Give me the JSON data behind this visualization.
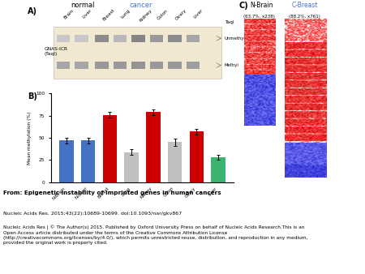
{
  "title": "From: Epigenetic instability of imprinted genes in human cancers",
  "citation1": "Nucleic Acids Res. 2015;43(22):10689-10699. doi:10.1093/nar/gkv867",
  "citation2": "Nucleic Acids Res | © The Author(s) 2015. Published by Oxford University Press on behalf of Nucleic Acids Research.This is an\nOpen Access article distributed under the terms of the Creative Commons Attribution License\n(http://creativecommons.org/licenses/by/4.0/), which permits unrestricted reuse, distribution, and reproduction in any medium,\nprovided the original work is properly cited.",
  "panel_A_label": "A)",
  "panel_B_label": "B)",
  "panel_C_label": "C)",
  "normal_label": "normal",
  "cancer_label": "cancer",
  "cancer_color": "#4472C4",
  "gel_label": "GNAS-ICR\n(TaqI)",
  "taqI_label": "TaqI",
  "unmethyl_label": "Unmethyl",
  "methyl_label": "Methyl",
  "normal_tissue_labels": [
    "Brain",
    "Liver"
  ],
  "cancer_tissue_labels": [
    "Breast",
    "Lung",
    "Kidney",
    "Colon",
    "Ovary",
    "Liver"
  ],
  "bar_categories": [
    "N-Brain",
    "N-Liver",
    "Breast",
    "Lung",
    "Kidney",
    "Colon",
    "Ovary",
    "Liver"
  ],
  "bar_values": [
    47,
    47,
    76,
    34,
    79,
    45,
    57,
    28
  ],
  "bar_errors": [
    3,
    3,
    3,
    3,
    3,
    4,
    3,
    3
  ],
  "bar_colors": [
    "#4472C4",
    "#4472C4",
    "#CC0000",
    "#C0C0C0",
    "#CC0000",
    "#C0C0C0",
    "#CC0000",
    "#3CB371"
  ],
  "bar_ylabel": "Mean methylation (%)",
  "bar_ylim": [
    0,
    100
  ],
  "bar_yticks": [
    0,
    25,
    50,
    75,
    100
  ],
  "nbrain_label": "N-Brain",
  "nbrain_sublabel": "(63.7%, x238)",
  "cbreast_label": "C-Breast",
  "cbreast_sublabel": "(88.2%, x761)",
  "nbrain_color": "#000000",
  "cbreast_color": "#4472C4",
  "bg_color": "#FFFFFF",
  "footer_bg": "#FFFFFF",
  "separator_color": "#AAAAAA"
}
